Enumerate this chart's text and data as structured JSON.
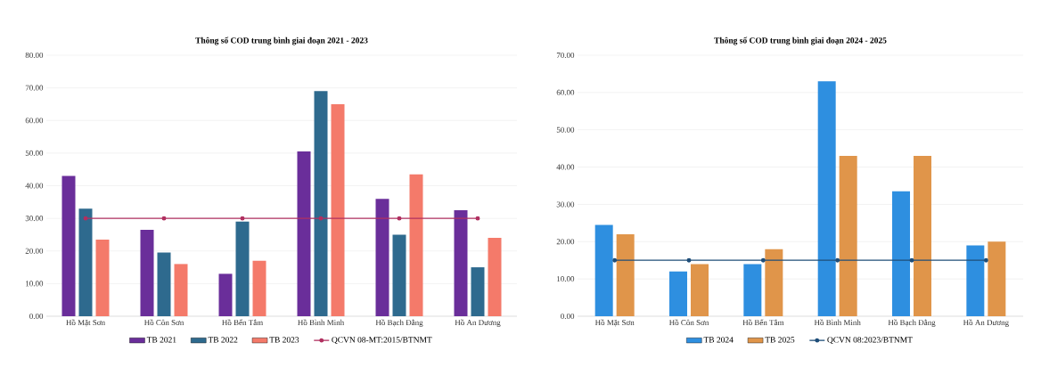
{
  "chart_data": [
    {
      "type": "bar",
      "title": "Thông số COD trung bình  giai đoạn 2021 - 2023",
      "categories": [
        "Hồ Mặt Sơn",
        "Hồ Côn Sơn",
        "Hồ Bến Tắm",
        "Hồ Bình Minh",
        "Hồ Bạch Đằng",
        "Hồ An Dương"
      ],
      "series": [
        {
          "name": "TB 2021",
          "color": "#6a2e9a",
          "values": [
            43,
            26.5,
            13,
            50.5,
            36,
            32.5
          ]
        },
        {
          "name": "TB 2022",
          "color": "#2e6a8e",
          "values": [
            33,
            19.5,
            29,
            69,
            25,
            15
          ]
        },
        {
          "name": "TB 2023",
          "color": "#f47a6a",
          "values": [
            23.5,
            16,
            17,
            65,
            43.5,
            24
          ]
        },
        {
          "name": "QCVN 08-MT:2015/BTNMT",
          "color": "#b03060",
          "type": "line",
          "values": [
            30,
            30,
            30,
            30,
            30,
            30
          ]
        }
      ],
      "ylim": [
        0,
        80
      ],
      "yticks": [
        {
          "value": 0,
          "label": "0.00"
        },
        {
          "value": 10,
          "label": "10.00"
        },
        {
          "value": 20,
          "label": "20.00"
        },
        {
          "value": 30,
          "label": "30.00"
        },
        {
          "value": 40,
          "label": "40.00"
        },
        {
          "value": 50,
          "label": "50.00"
        },
        {
          "value": 60,
          "label": "60.00"
        },
        {
          "value": 70,
          "label": "70.00"
        },
        {
          "value": 80,
          "label": "80.00"
        }
      ],
      "grid": "y",
      "legend": "bottom",
      "marker": "circle"
    },
    {
      "type": "bar",
      "title": "Thông số COD trung bình  giai đoạn 2024 - 2025",
      "categories": [
        "Hồ Mặt Sơn",
        "Hồ Côn Sơn",
        "Hồ Bến Tắm",
        "Hồ Bình Minh",
        "Hồ Bạch Đằng",
        "Hồ An Dương"
      ],
      "series": [
        {
          "name": "TB 2024",
          "color": "#2e8fe0",
          "values": [
            24.5,
            12,
            14,
            63,
            33.5,
            19
          ]
        },
        {
          "name": "TB 2025",
          "color": "#e0954a",
          "values": [
            22,
            14,
            18,
            43,
            43,
            20
          ]
        },
        {
          "name": "QCVN 08:2023/BTNMT",
          "color": "#1f4e79",
          "type": "line",
          "values": [
            15,
            15,
            15,
            15,
            15,
            15
          ]
        }
      ],
      "ylim": [
        0,
        70
      ],
      "yticks": [
        {
          "value": 0,
          "label": "0.00"
        },
        {
          "value": 10,
          "label": "10.00"
        },
        {
          "value": 20,
          "label": "20.00"
        },
        {
          "value": 30,
          "label": "30.00"
        },
        {
          "value": 40,
          "label": "40.00"
        },
        {
          "value": 50,
          "label": "50.00"
        },
        {
          "value": 60,
          "label": "60.00"
        },
        {
          "value": 70,
          "label": "70.00"
        }
      ],
      "grid": "y",
      "legend": "bottom",
      "marker": "circle"
    }
  ]
}
